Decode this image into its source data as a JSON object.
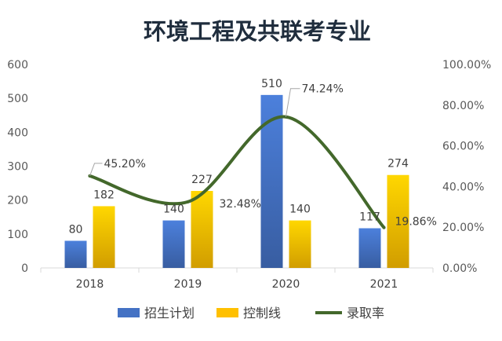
{
  "chart_data": {
    "type": "bar",
    "title": "环境工程及共联考专业",
    "categories": [
      "2018",
      "2019",
      "2020",
      "2021"
    ],
    "series": [
      {
        "name": "招生计划",
        "type": "bar",
        "axis": "left",
        "color": "#4472c4",
        "values": [
          80,
          140,
          510,
          117
        ],
        "labels": [
          "80",
          "140",
          "510",
          "117"
        ]
      },
      {
        "name": "控制线",
        "type": "bar",
        "axis": "left",
        "color": "#ffc000",
        "values": [
          182,
          227,
          140,
          274
        ],
        "labels": [
          "182",
          "227",
          "140",
          "274"
        ]
      },
      {
        "name": "录取率",
        "type": "line",
        "axis": "right",
        "color": "#43682b",
        "values": [
          45.2,
          32.48,
          74.24,
          19.86
        ],
        "labels": [
          "45.20%",
          "32.48%",
          "74.24%",
          "19.86%"
        ]
      }
    ],
    "y_left": {
      "min": 0,
      "max": 600,
      "ticks": [
        "0",
        "100",
        "200",
        "300",
        "400",
        "500",
        "600"
      ]
    },
    "y_right": {
      "min": 0,
      "max": 100,
      "ticks": [
        "0.00%",
        "20.00%",
        "40.00%",
        "60.00%",
        "80.00%",
        "100.00%"
      ]
    },
    "grid": false,
    "legend_position": "bottom"
  }
}
